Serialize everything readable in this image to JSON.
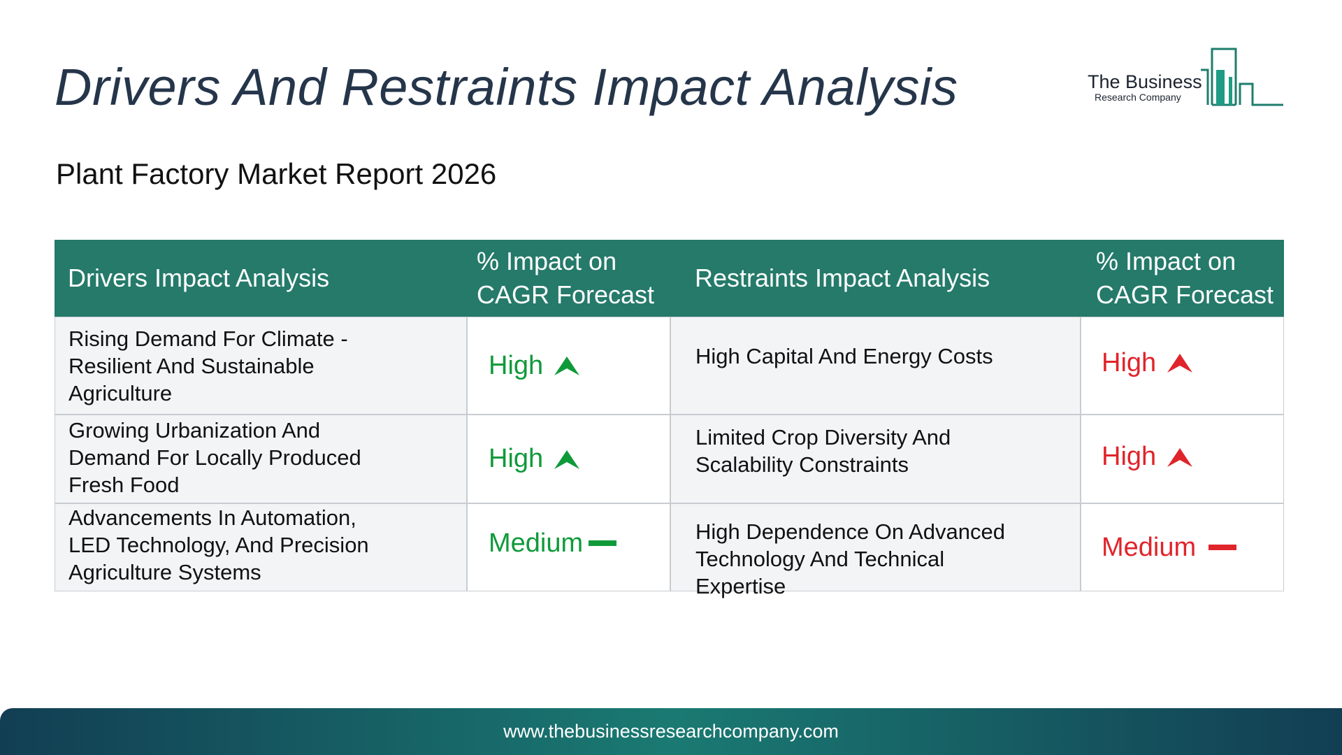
{
  "header": {
    "title": "Drivers And Restraints Impact Analysis",
    "subtitle": "Plant Factory Market Report 2026",
    "logo_line1": "The Business",
    "logo_line2": "Research Company"
  },
  "table": {
    "col_drivers": "Drivers Impact Analysis",
    "col_drivers_impact_line1": "% Impact on",
    "col_drivers_impact_line2": "CAGR Forecast",
    "col_restraints": "Restraints Impact Analysis",
    "col_restraints_impact_line1": "% Impact on",
    "col_restraints_impact_line2": "CAGR Forecast",
    "rows": [
      {
        "driver_lines": [
          "Rising Demand For Climate -",
          "Resilient And Sustainable",
          "Agriculture"
        ],
        "driver_impact": "High",
        "driver_icon": "up-arrow-icon",
        "restraint_lines": [
          "High Capital And Energy Costs"
        ],
        "restraint_impact": "High",
        "restraint_icon": "up-arrow-icon"
      },
      {
        "driver_lines": [
          "Growing Urbanization And",
          "Demand For Locally Produced",
          "Fresh Food"
        ],
        "driver_impact": "High",
        "driver_icon": "up-arrow-icon",
        "restraint_lines": [
          "Limited Crop Diversity And",
          "Scalability Constraints"
        ],
        "restraint_impact": "High",
        "restraint_icon": "up-arrow-icon"
      },
      {
        "driver_lines": [
          "Advancements In Automation,",
          "LED Technology, And Precision",
          "Agriculture Systems"
        ],
        "driver_impact": "Medium",
        "driver_icon": "dash-icon",
        "restraint_lines": [
          "High Dependence On Advanced",
          "Technology And Technical",
          "Expertise"
        ],
        "restraint_impact": "Medium",
        "restraint_icon": "dash-icon"
      }
    ]
  },
  "colors": {
    "header_bg": "#257a6a",
    "driver_impact": "#0f9a3a",
    "restraint_impact": "#e0242b",
    "title": "#25354a"
  },
  "footer": {
    "url": "www.thebusinessresearchcompany.com"
  }
}
